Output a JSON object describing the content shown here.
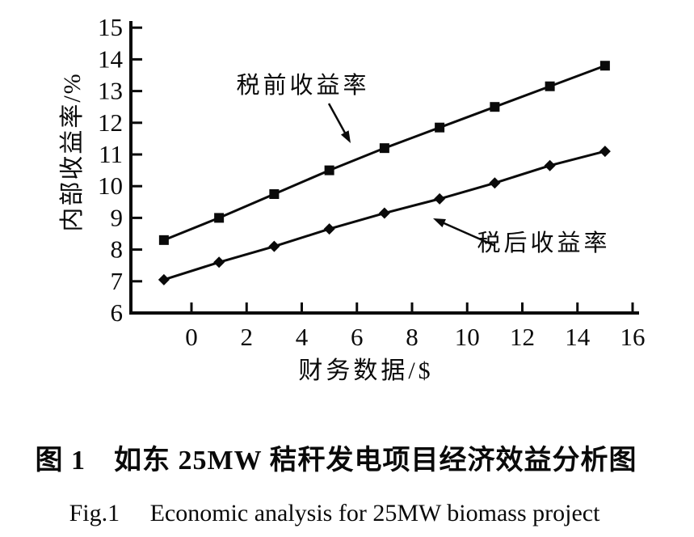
{
  "page": {
    "background": "#ffffff",
    "ink": "#0a0a0a"
  },
  "figure": {
    "caption_zh": "图 1　如东 25MW 秸秆发电项目经济效益分析图",
    "caption_en": "Fig.1　 Economic analysis for 25MW biomass project"
  },
  "chart_data": {
    "type": "line",
    "title": "",
    "xlabel": "财务数据/$",
    "ylabel": "内部收益率/%",
    "xlim": [
      -2.2,
      16.2
    ],
    "ylim": [
      6,
      15
    ],
    "x_ticks": [
      0,
      2,
      4,
      6,
      8,
      10,
      12,
      14,
      16
    ],
    "y_ticks": [
      6,
      7,
      8,
      9,
      10,
      11,
      12,
      13,
      14,
      15
    ],
    "grid": false,
    "legend": "inline arrow annotations",
    "x": [
      -1,
      1,
      3,
      5,
      7,
      9,
      11,
      13,
      15
    ],
    "series": [
      {
        "name": "税前收益率",
        "marker": "square",
        "color": "#0a0a0a",
        "values": [
          8.3,
          9.0,
          9.75,
          10.5,
          11.2,
          11.85,
          12.5,
          13.15,
          13.8
        ]
      },
      {
        "name": "税后收益率",
        "marker": "diamond",
        "color": "#0a0a0a",
        "values": [
          7.05,
          7.6,
          8.1,
          8.65,
          9.15,
          9.6,
          10.1,
          10.65,
          11.1
        ]
      }
    ]
  }
}
